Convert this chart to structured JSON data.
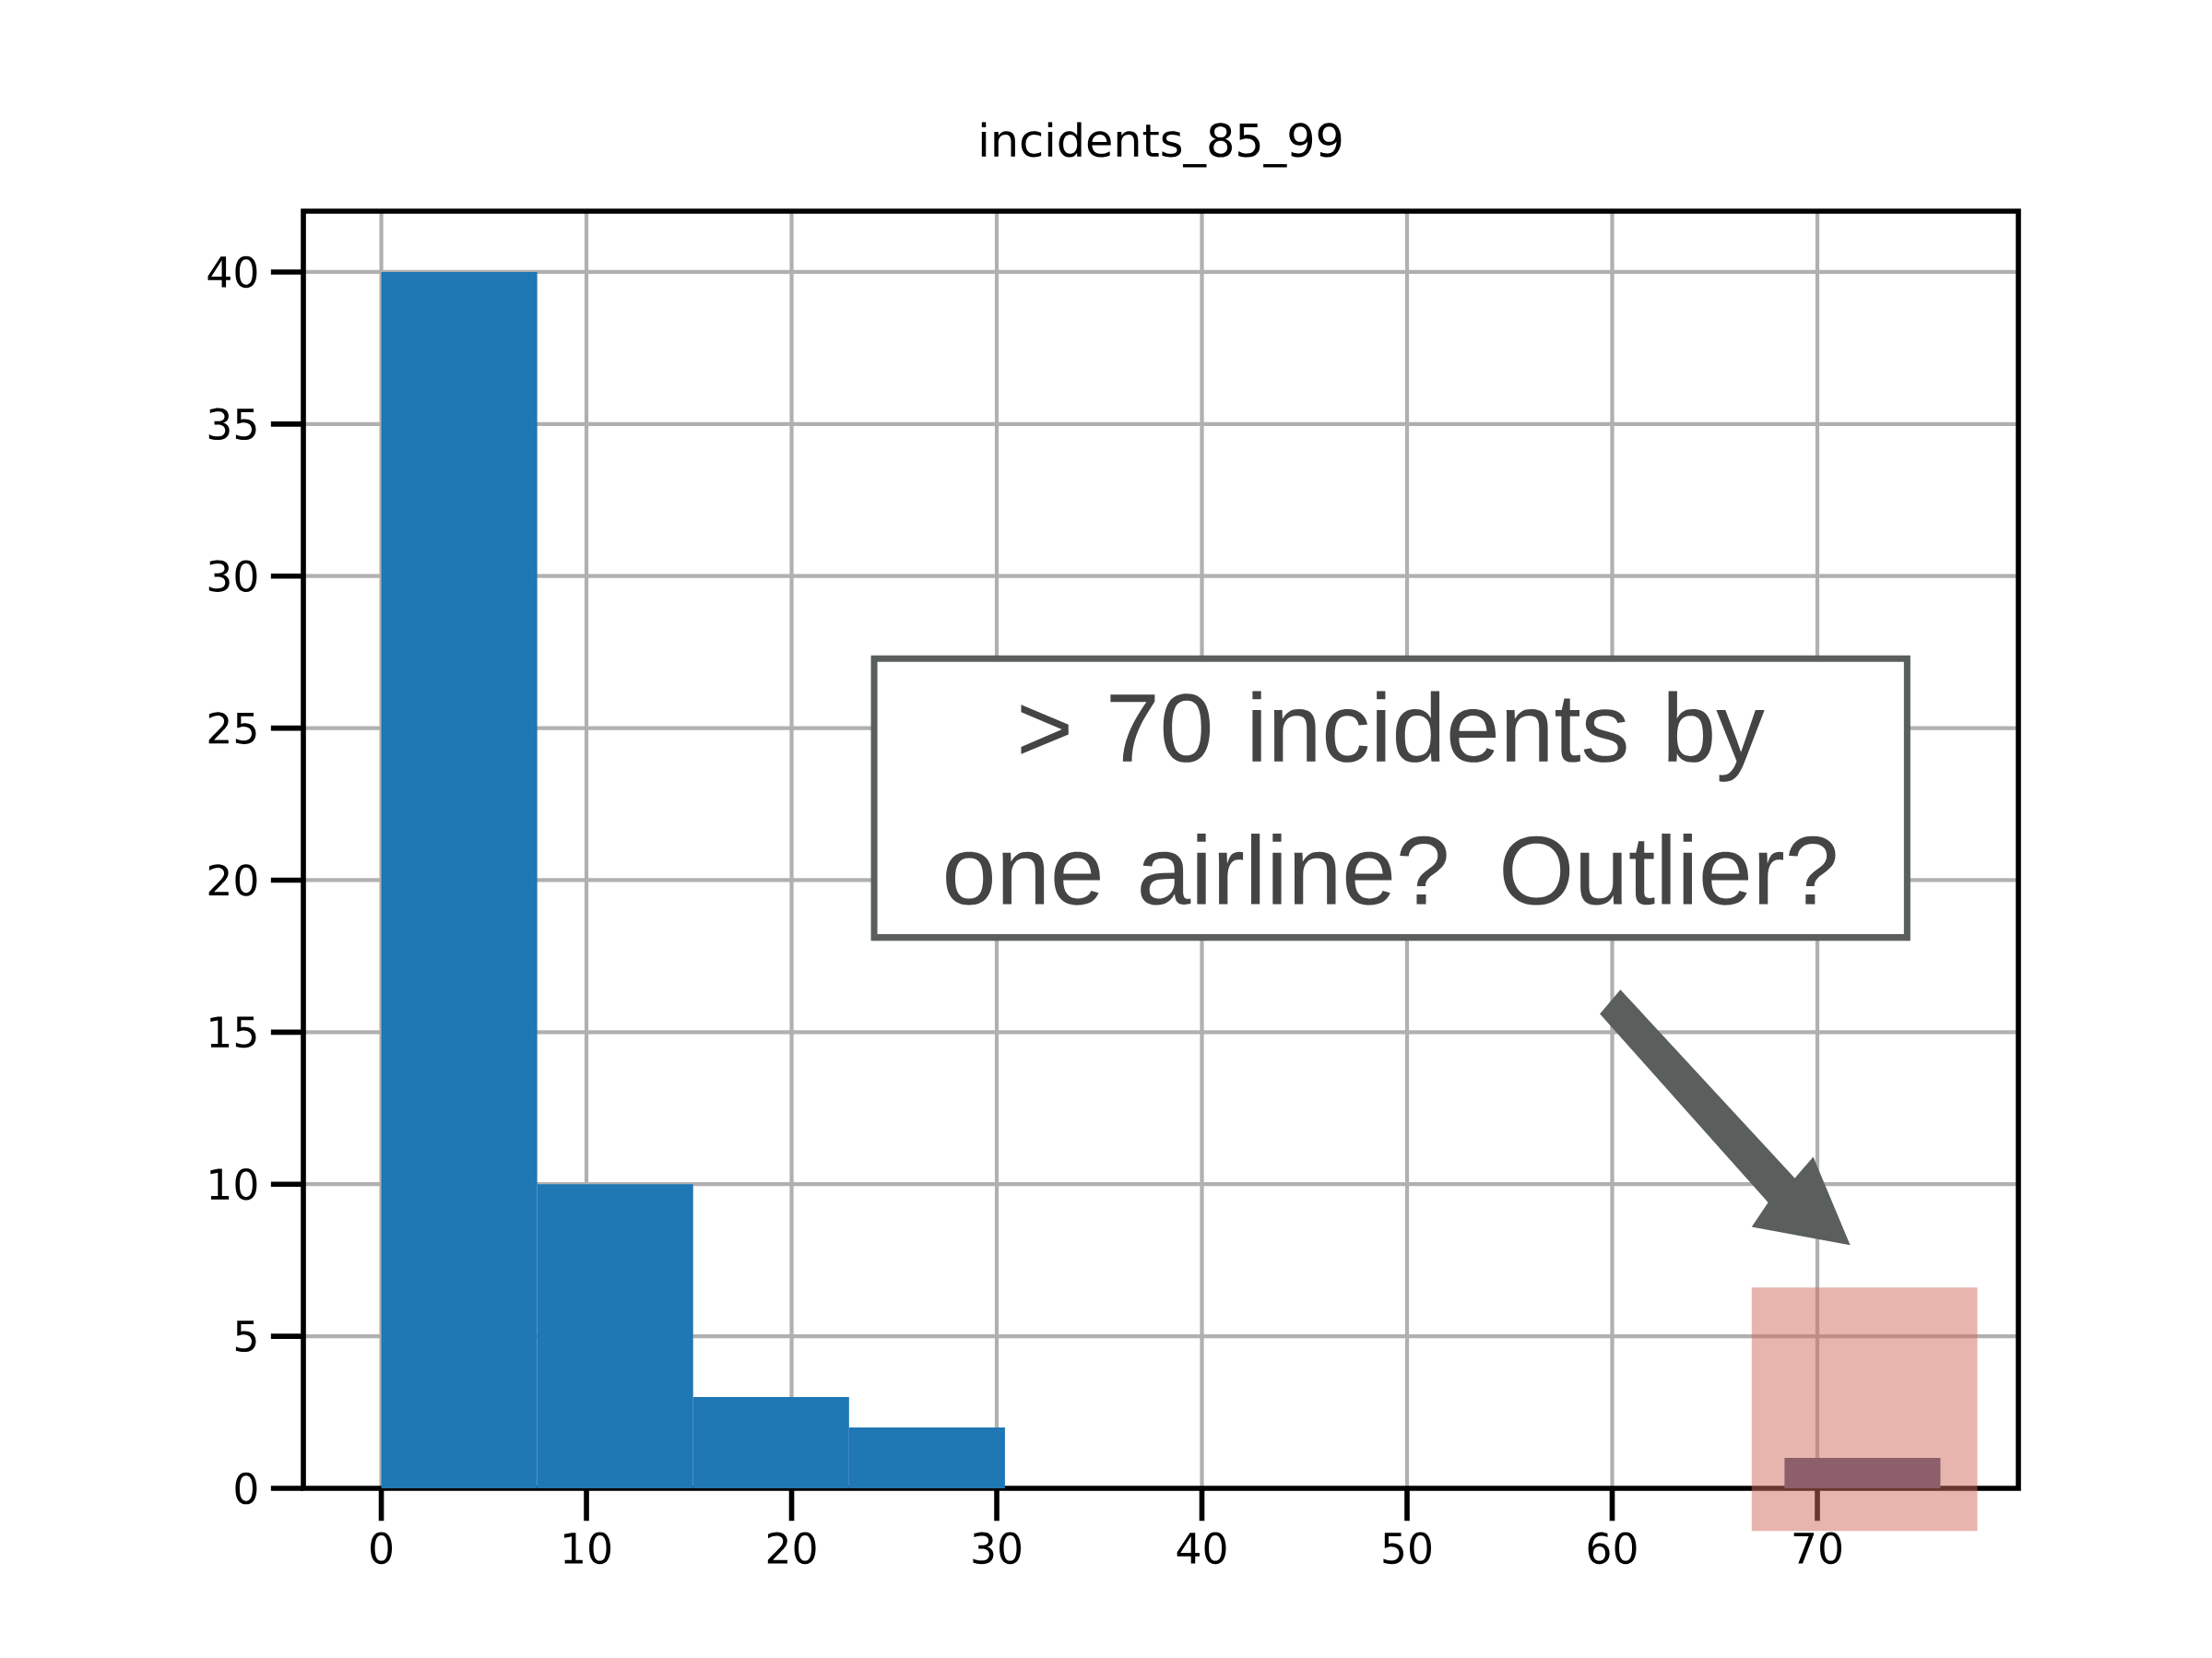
{
  "chart_data": {
    "type": "histogram",
    "title": "incidents_85_99",
    "bins": [
      0,
      7.6,
      15.2,
      22.8,
      30.4,
      38,
      45.6,
      53.2,
      60.8,
      68.4,
      76
    ],
    "values": [
      40,
      10,
      3,
      2,
      0,
      0,
      0,
      0,
      0,
      1
    ],
    "colors": [
      "#1f77b4",
      "#1f77b4",
      "#1f77b4",
      "#1f77b4",
      "#1f77b4",
      "#1f77b4",
      "#1f77b4",
      "#1f77b4",
      "#1f77b4",
      "#4b5479"
    ],
    "xlim": [
      -3.8,
      79.8
    ],
    "ylim": [
      0,
      42
    ],
    "xticks": [
      0,
      10,
      20,
      30,
      40,
      50,
      60,
      70
    ],
    "yticks": [
      0,
      5,
      10,
      15,
      20,
      25,
      30,
      35,
      40
    ],
    "grid": true,
    "bands": [
      {
        "axis": "x",
        "from": 66.8,
        "to": 77.8,
        "color": "#d06a5e"
      }
    ],
    "annotations": [
      "> 70 incidents by one airline? Outlier?"
    ]
  }
}
